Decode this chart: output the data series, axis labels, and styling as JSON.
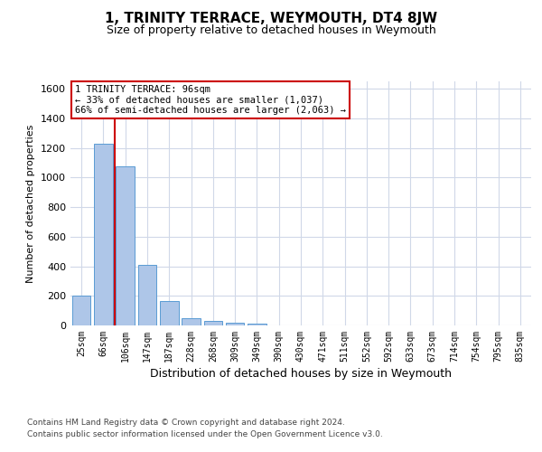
{
  "title": "1, TRINITY TERRACE, WEYMOUTH, DT4 8JW",
  "subtitle": "Size of property relative to detached houses in Weymouth",
  "xlabel": "Distribution of detached houses by size in Weymouth",
  "ylabel": "Number of detached properties",
  "categories": [
    "25sqm",
    "66sqm",
    "106sqm",
    "147sqm",
    "187sqm",
    "228sqm",
    "268sqm",
    "309sqm",
    "349sqm",
    "390sqm",
    "430sqm",
    "471sqm",
    "511sqm",
    "552sqm",
    "592sqm",
    "633sqm",
    "673sqm",
    "714sqm",
    "754sqm",
    "795sqm",
    "835sqm"
  ],
  "values": [
    200,
    1230,
    1075,
    410,
    165,
    50,
    30,
    20,
    15,
    0,
    0,
    0,
    0,
    0,
    0,
    0,
    0,
    0,
    0,
    0,
    0
  ],
  "bar_color": "#aec6e8",
  "bar_edge_color": "#5a9bd4",
  "grid_color": "#d0d8e8",
  "background_color": "#ffffff",
  "annotation_text": "1 TRINITY TERRACE: 96sqm\n← 33% of detached houses are smaller (1,037)\n66% of semi-detached houses are larger (2,063) →",
  "annotation_box_color": "#ffffff",
  "annotation_box_edge_color": "#cc0000",
  "vline_x_index": 1.5,
  "vline_color": "#cc0000",
  "ylim": [
    0,
    1650
  ],
  "yticks": [
    0,
    200,
    400,
    600,
    800,
    1000,
    1200,
    1400,
    1600
  ],
  "footer_line1": "Contains HM Land Registry data © Crown copyright and database right 2024.",
  "footer_line2": "Contains public sector information licensed under the Open Government Licence v3.0."
}
